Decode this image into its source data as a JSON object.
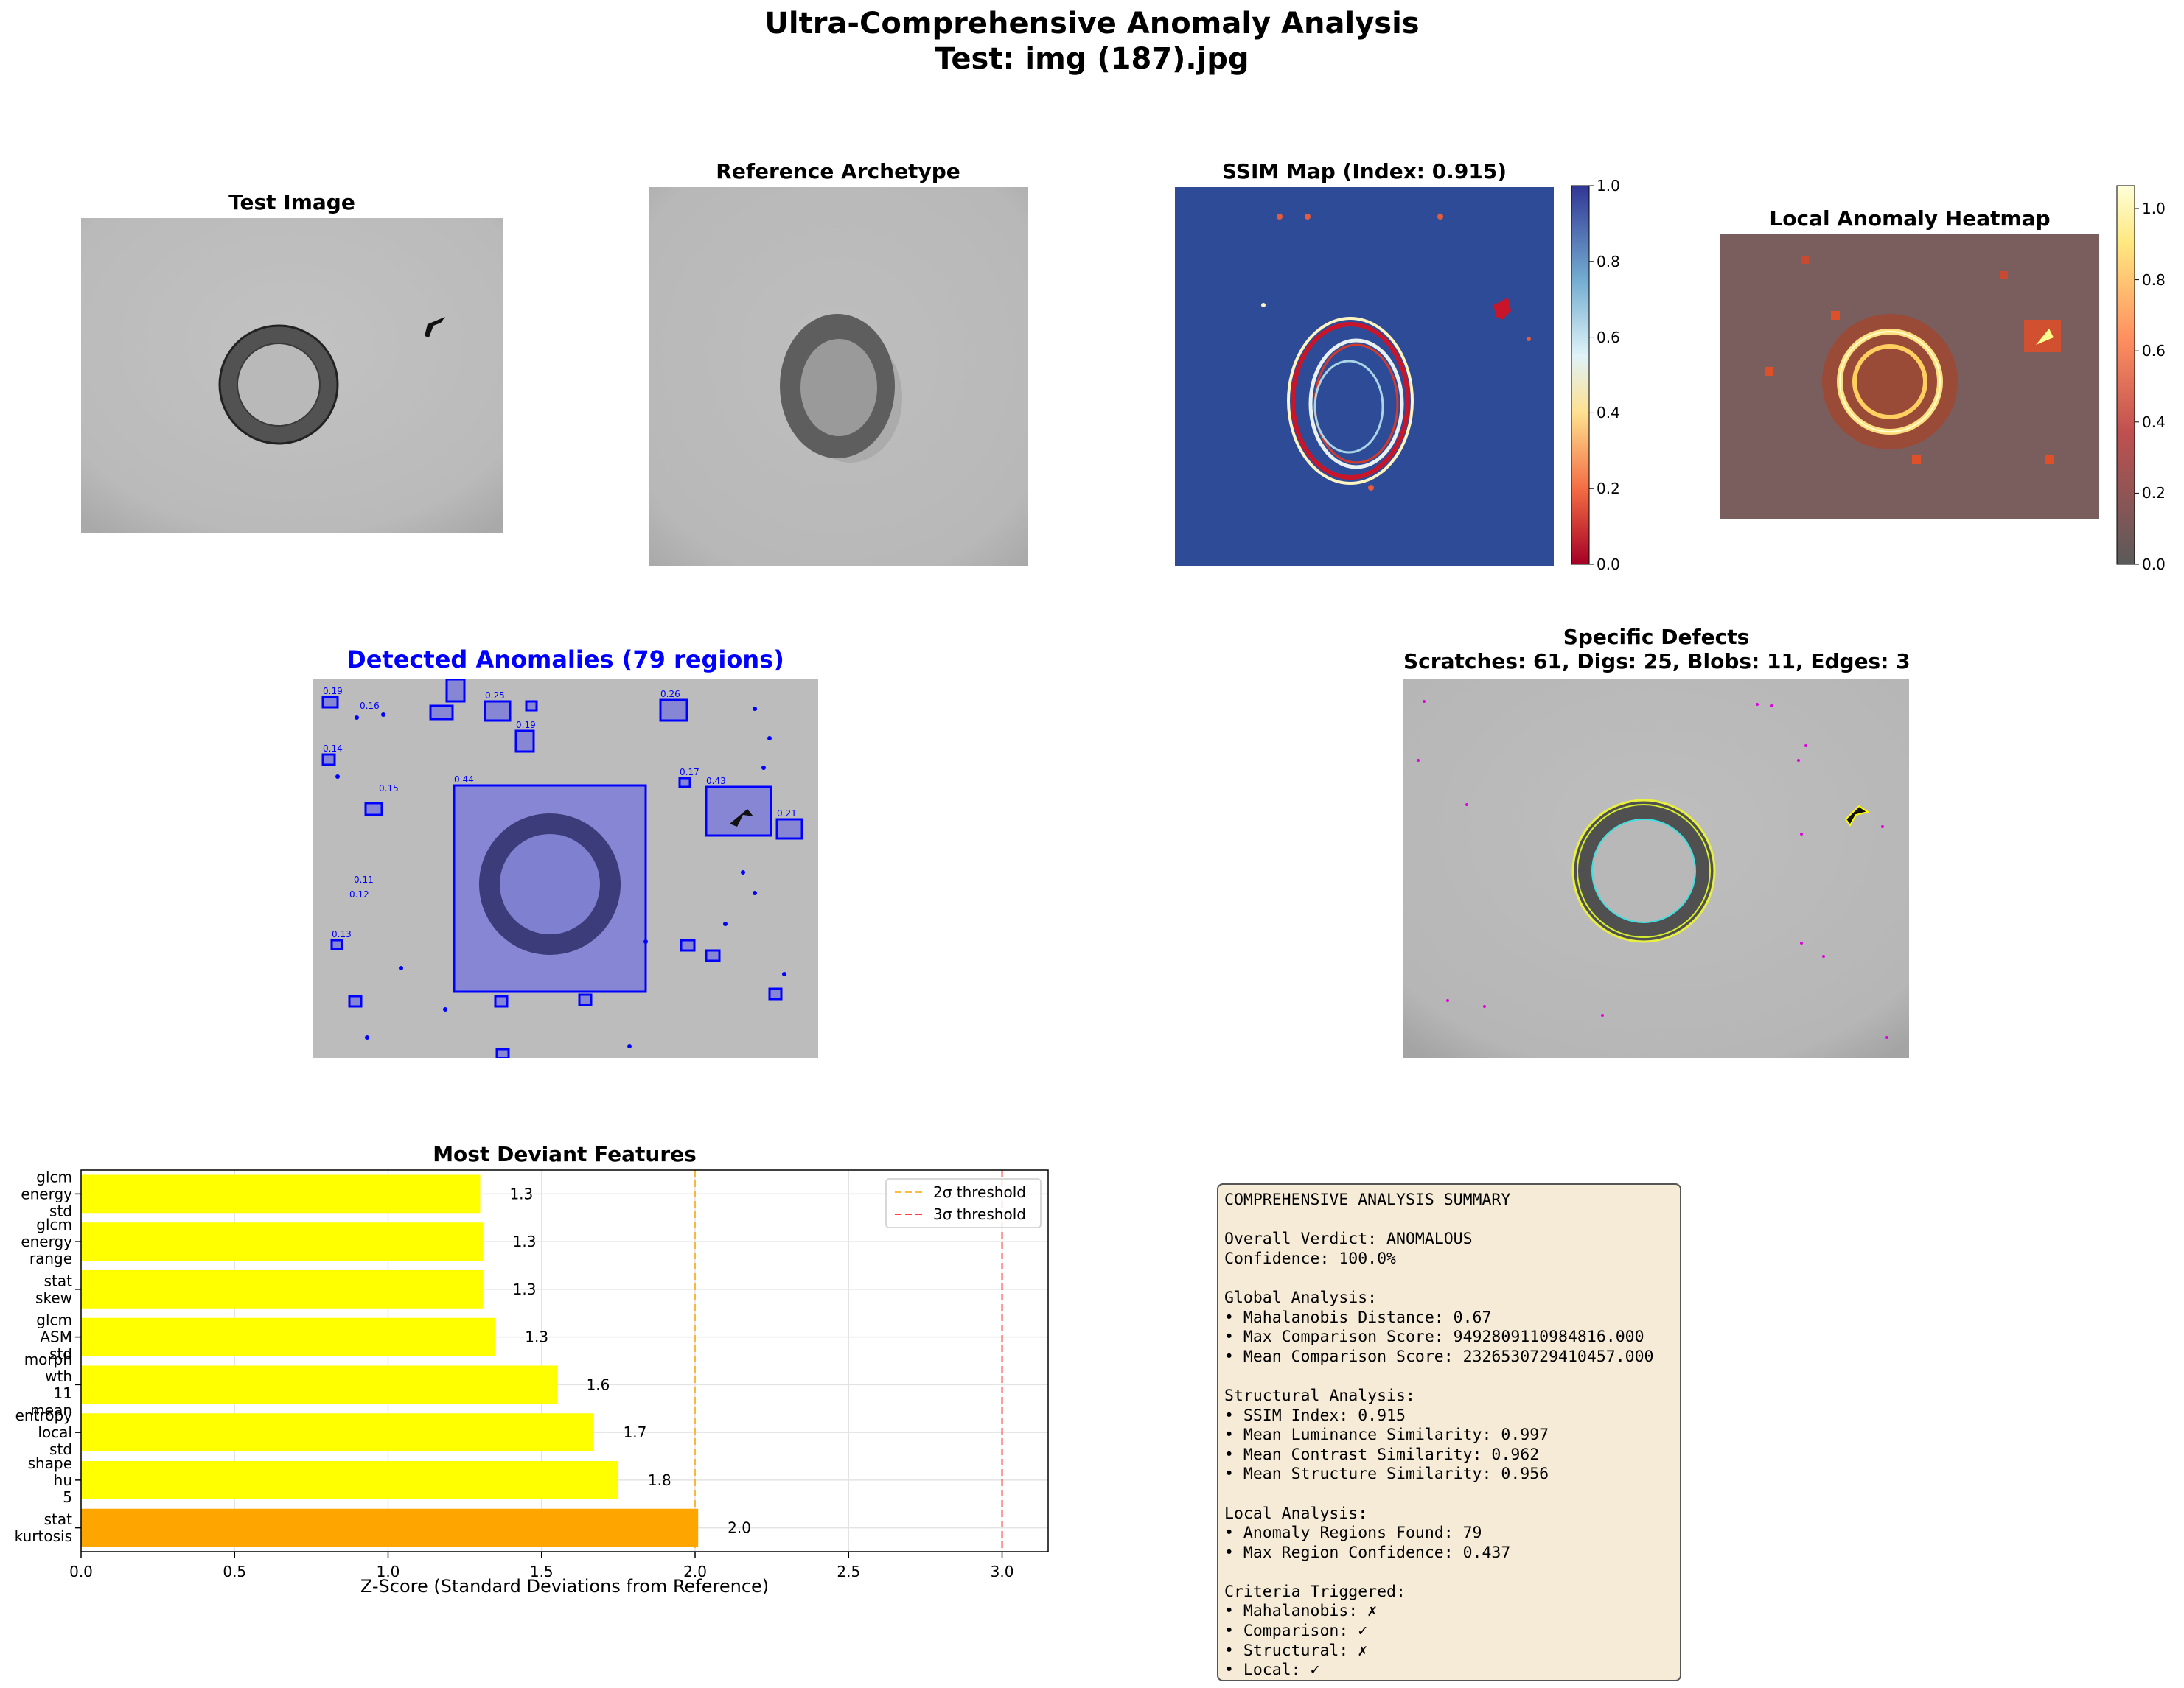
{
  "figure": {
    "suptitle_line1": "Ultra-Comprehensive Anomaly Analysis",
    "suptitle_line2": "Test: img (187).jpg"
  },
  "panels": {
    "test_image": {
      "title": "Test Image"
    },
    "reference": {
      "title": "Reference Archetype"
    },
    "ssim_map": {
      "title": "SSIM Map (Index: 0.915)",
      "colorbar_ticks": [
        "1.0",
        "0.8",
        "0.6",
        "0.4",
        "0.2",
        "0.0"
      ],
      "colormap": "RdYlBu"
    },
    "heatmap": {
      "title": "Local Anomaly Heatmap",
      "colorbar_ticks": [
        "1.0",
        "0.8",
        "0.6",
        "0.4",
        "0.2",
        "0.0"
      ],
      "colormap": "hot"
    },
    "detected": {
      "title": "Detected Anomalies (79 regions)",
      "title_color": "#0000ff",
      "region_labels": [
        "0.44",
        "0.43",
        "0.26",
        "0.25",
        "0.21",
        "0.19",
        "0.19",
        "0.17",
        "0.16",
        "0.15",
        "0.14",
        "0.13",
        "0.12",
        "0.11"
      ]
    },
    "defects": {
      "title_line1": "Specific Defects",
      "title_line2": "Scratches: 61, Digs: 25, Blobs: 11, Edges: 3"
    }
  },
  "chart_data": {
    "type": "bar",
    "orientation": "horizontal",
    "title": "Most Deviant Features",
    "xlabel": "Z-Score (Standard Deviations from Reference)",
    "ylabel": "",
    "xlim": [
      0,
      3.15
    ],
    "xticks": [
      "0.0",
      "0.5",
      "1.0",
      "1.5",
      "2.0",
      "2.5",
      "3.0"
    ],
    "grid": true,
    "legend_position": "top-right",
    "categories": [
      [
        "stat",
        "kurtosis"
      ],
      [
        "shape",
        "hu",
        "5"
      ],
      [
        "entropy",
        "local",
        "std"
      ],
      [
        "morph",
        "wth",
        "11",
        "mean"
      ],
      [
        "glcm",
        "ASM",
        "std"
      ],
      [
        "stat",
        "skew"
      ],
      [
        "glcm",
        "energy",
        "range"
      ],
      [
        "glcm",
        "energy",
        "std"
      ]
    ],
    "values": [
      2.01,
      1.75,
      1.67,
      1.55,
      1.35,
      1.31,
      1.31,
      1.3
    ],
    "value_labels": [
      "2.0",
      "1.8",
      "1.7",
      "1.6",
      "1.3",
      "1.3",
      "1.3",
      "1.3"
    ],
    "bar_colors": [
      "#ffa500",
      "#ffff00",
      "#ffff00",
      "#ffff00",
      "#ffff00",
      "#ffff00",
      "#ffff00",
      "#ffff00"
    ],
    "thresholds": [
      {
        "name": "2σ threshold",
        "value": 2.0,
        "color": "#ffa500"
      },
      {
        "name": "3σ threshold",
        "value": 3.0,
        "color": "#ff0000"
      }
    ]
  },
  "summary": {
    "lines": [
      "COMPREHENSIVE ANALYSIS SUMMARY",
      "",
      "Overall Verdict: ANOMALOUS",
      "Confidence: 100.0%",
      "",
      "Global Analysis:",
      "• Mahalanobis Distance: 0.67",
      "• Max Comparison Score: 9492809110984816.000",
      "• Mean Comparison Score: 2326530729410457.000",
      "",
      "Structural Analysis:",
      "• SSIM Index: 0.915",
      "• Mean Luminance Similarity: 0.997",
      "• Mean Contrast Similarity: 0.962",
      "• Mean Structure Similarity: 0.956",
      "",
      "Local Analysis:",
      "• Anomaly Regions Found: 79",
      "• Max Region Confidence: 0.437",
      "",
      "Criteria Triggered:",
      "• Mahalanobis: ✗",
      "• Comparison: ✓",
      "• Structural: ✗",
      "• Local: ✓"
    ]
  }
}
